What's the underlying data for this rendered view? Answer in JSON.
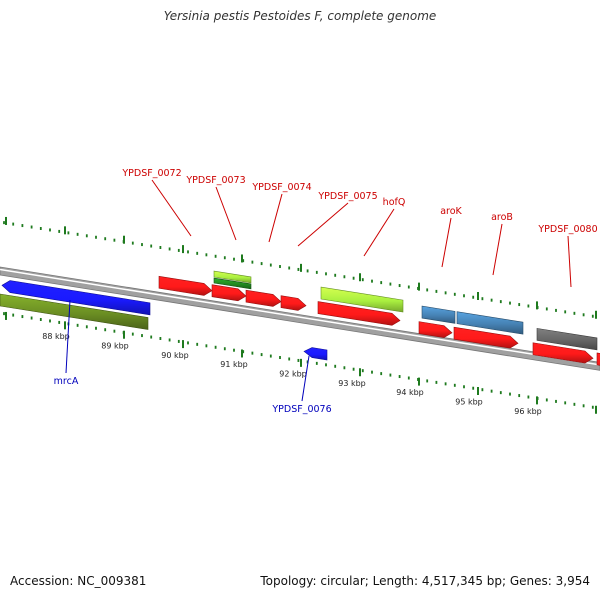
{
  "title": "Yersinia pestis Pestoides F, complete genome",
  "footer": {
    "accession": "Accession: NC_009381",
    "summary": "Topology: circular; Length: 4,517,345 bp; Genes: 3,954"
  },
  "colors": {
    "forward_cds": "#ff1a1a",
    "reverse_cds": "#1a1aff",
    "forward_label": "#cc0000",
    "reverse_label": "#0000bb",
    "tick": "#1e7a1e",
    "backbone": "#a0a0a0",
    "forward_gene": "#aaf040",
    "dark_green": "#228b22",
    "steel_blue": "#4682b4",
    "olive": "#6b8e23",
    "gray": "#666666"
  },
  "scale": {
    "unit": "kbp",
    "ticks": [
      "88 kbp",
      "89 kbp",
      "90 kbp",
      "91 kbp",
      "92 kbp",
      "93 kbp",
      "94 kbp",
      "95 kbp",
      "96 kbp"
    ]
  },
  "features": [
    {
      "name": "mrcA",
      "strand": "reverse",
      "kind": "CDS",
      "color": "#1a1aff",
      "labeled": true
    },
    {
      "name": "mrcA",
      "strand": "reverse",
      "kind": "gene",
      "color": "#6b8e23",
      "labeled": false
    },
    {
      "name": "YPDSF_0072",
      "strand": "forward",
      "kind": "CDS",
      "color": "#ff1a1a",
      "labeled": true
    },
    {
      "name": "YPDSF_0073",
      "strand": "forward",
      "kind": "CDS",
      "color": "#ff1a1a",
      "labeled": true
    },
    {
      "name": "YPDSF_0073",
      "strand": "forward",
      "kind": "gene",
      "color": "#aaf040",
      "labeled": false
    },
    {
      "name": "YPDSF_0073",
      "strand": "forward",
      "kind": "gene",
      "color": "#228b22",
      "labeled": false
    },
    {
      "name": "YPDSF_0074",
      "strand": "forward",
      "kind": "CDS",
      "color": "#ff1a1a",
      "labeled": true
    },
    {
      "name": "YPDSF_0075",
      "strand": "forward",
      "kind": "CDS",
      "color": "#ff1a1a",
      "labeled": true
    },
    {
      "name": "YPDSF_0076",
      "strand": "reverse",
      "kind": "CDS",
      "color": "#1a1aff",
      "labeled": true
    },
    {
      "name": "hofQ",
      "strand": "forward",
      "kind": "CDS",
      "color": "#ff1a1a",
      "labeled": true
    },
    {
      "name": "hofQ",
      "strand": "forward",
      "kind": "gene",
      "color": "#aaf040",
      "labeled": false
    },
    {
      "name": "aroK",
      "strand": "forward",
      "kind": "CDS",
      "color": "#ff1a1a",
      "labeled": true
    },
    {
      "name": "aroK",
      "strand": "forward",
      "kind": "gene",
      "color": "#4682b4",
      "labeled": false
    },
    {
      "name": "aroB",
      "strand": "forward",
      "kind": "CDS",
      "color": "#ff1a1a",
      "labeled": true
    },
    {
      "name": "aroB",
      "strand": "forward",
      "kind": "gene",
      "color": "#4682b4",
      "labeled": false
    },
    {
      "name": "YPDSF_0080",
      "strand": "forward",
      "kind": "CDS",
      "color": "#ff1a1a",
      "labeled": true
    },
    {
      "name": "YPDSF_0080",
      "strand": "forward",
      "kind": "gene",
      "color": "#666666",
      "labeled": false
    }
  ]
}
